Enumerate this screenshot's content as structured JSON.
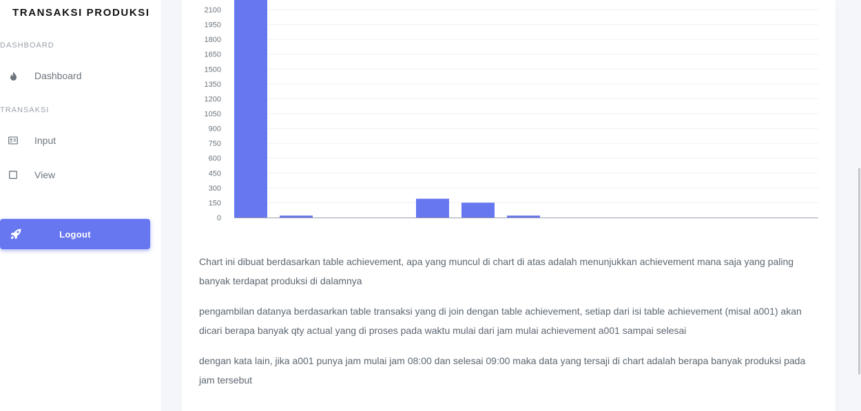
{
  "sidebar": {
    "brand": "TRANSAKSI PRODUKSI",
    "sections": [
      {
        "header": "DASHBOARD",
        "items": [
          {
            "label": "Dashboard",
            "icon": "fire-icon"
          }
        ]
      },
      {
        "header": "TRANSAKSI",
        "items": [
          {
            "label": "Input",
            "icon": "id-card-icon"
          },
          {
            "label": "View",
            "icon": "square-icon"
          }
        ]
      }
    ],
    "logout": {
      "label": "Logout",
      "icon": "rocket-icon"
    }
  },
  "description": [
    "Chart ini dibuat berdasarkan table achievement, apa yang muncul di chart di atas adalah menunjukkan achievement mana saja yang paling banyak terdapat produksi di dalamnya",
    "pengambilan datanya berdasarkan table transaksi yang di join dengan table achievement, setiap dari isi table achievement (misal a001) akan dicari berapa banyak qty actual yang di proses pada waktu mulai dari jam mulai achievement a001 sampai selesai",
    "dengan kata lain, jika a001 punya jam mulai jam 08:00 dan selesai 09:00 maka data yang tersaji di chart adalah berapa banyak produksi pada jam tersebut"
  ],
  "colors": {
    "accent": "#6777ef",
    "bar": "#6777ef"
  },
  "chart_data": {
    "type": "bar",
    "categories": [
      "",
      "",
      "",
      "",
      "",
      "",
      "",
      "",
      "",
      "",
      "",
      "",
      ""
    ],
    "values": [
      2200,
      20,
      0,
      0,
      190,
      150,
      20,
      0,
      0,
      0,
      0,
      0,
      0
    ],
    "yticks": [
      0,
      150,
      300,
      450,
      600,
      750,
      900,
      1050,
      1200,
      1350,
      1500,
      1650,
      1800,
      1950,
      2100
    ],
    "ylim": [
      0,
      2250
    ],
    "grid": true,
    "title": "",
    "xlabel": "",
    "ylabel": ""
  }
}
